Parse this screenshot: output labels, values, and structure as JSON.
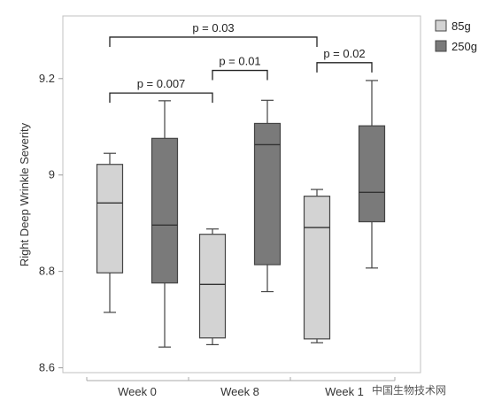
{
  "chart_data": {
    "type": "box",
    "ylabel": "Right Deep Wrinkle Severity",
    "yticks": [
      "8.6",
      "8.8",
      "9",
      "9.2"
    ],
    "ylim": [
      8.59,
      9.33
    ],
    "categories": [
      "Week 0",
      "Week 8",
      "Week 1"
    ],
    "series": [
      {
        "name": "85g",
        "color": "#d3d3d3",
        "boxes": [
          {
            "min": 8.715,
            "q1": 8.797,
            "median": 8.942,
            "q3": 9.022,
            "max": 9.045
          },
          {
            "min": 8.648,
            "q1": 8.662,
            "median": 8.773,
            "q3": 8.877,
            "max": 8.888
          },
          {
            "min": 8.652,
            "q1": 8.66,
            "median": 8.891,
            "q3": 8.956,
            "max": 8.97
          }
        ]
      },
      {
        "name": "250g",
        "color": "#7a7a7a",
        "boxes": [
          {
            "min": 8.643,
            "q1": 8.776,
            "median": 8.896,
            "q3": 9.076,
            "max": 9.154
          },
          {
            "min": 8.758,
            "q1": 8.814,
            "median": 9.063,
            "q3": 9.107,
            "max": 9.155
          },
          {
            "min": 8.807,
            "q1": 8.903,
            "median": 8.964,
            "q3": 9.102,
            "max": 9.196
          }
        ]
      }
    ],
    "annotations": [
      {
        "text": "p = 0.03",
        "from": [
          0,
          "85g"
        ],
        "to": [
          2,
          "85g"
        ],
        "y": 9.286
      },
      {
        "text": "p = 0.007",
        "from": [
          0,
          "85g"
        ],
        "to": [
          1,
          "85g"
        ],
        "y": 9.17
      },
      {
        "text": "p = 0.01",
        "from": [
          1,
          "85g"
        ],
        "to": [
          1,
          "250g"
        ],
        "y": 9.217
      },
      {
        "text": "p = 0.02",
        "from": [
          2,
          "85g"
        ],
        "to": [
          2,
          "250g"
        ],
        "y": 9.233
      }
    ],
    "legend": {
      "position": "top-right",
      "entries": [
        "85g",
        "250g"
      ]
    }
  },
  "watermark": "中国生物技术网"
}
